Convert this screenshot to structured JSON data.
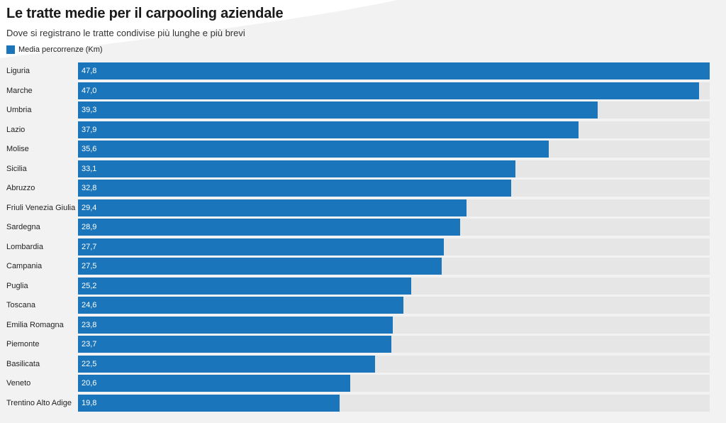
{
  "colors": {
    "bar": "#1b75bb",
    "track": "#e6e6e6"
  },
  "chart_data": {
    "type": "bar",
    "orientation": "horizontal",
    "title": "Le tratte medie per il carpooling aziendale",
    "subtitle": "Dove si registrano le tratte condivise più lunghe e più brevi",
    "legend_position": "top-left",
    "xlim": [
      0,
      47.8
    ],
    "grid": false,
    "series": [
      {
        "name": "Media percorrenze (Km)",
        "values": [
          47.8,
          47.0,
          39.3,
          37.9,
          35.6,
          33.1,
          32.8,
          29.4,
          28.9,
          27.7,
          27.5,
          25.2,
          24.6,
          23.8,
          23.7,
          22.5,
          20.6,
          19.8
        ]
      }
    ],
    "categories": [
      "Liguria",
      "Marche",
      "Umbria",
      "Lazio",
      "Molise",
      "Sicilia",
      "Abruzzo",
      "Friuli Venezia Giulia",
      "Sardegna",
      "Lombardia",
      "Campania",
      "Puglia",
      "Toscana",
      "Emilia Romagna",
      "Piemonte",
      "Basilicata",
      "Veneto",
      "Trentino Alto Adige"
    ],
    "value_labels": [
      "47,8",
      "47,0",
      "39,3",
      "37,9",
      "35,6",
      "33,1",
      "32,8",
      "29,4",
      "28,9",
      "27,7",
      "27,5",
      "25,2",
      "24,6",
      "23,8",
      "23,7",
      "22,5",
      "20,6",
      "19,8"
    ]
  }
}
